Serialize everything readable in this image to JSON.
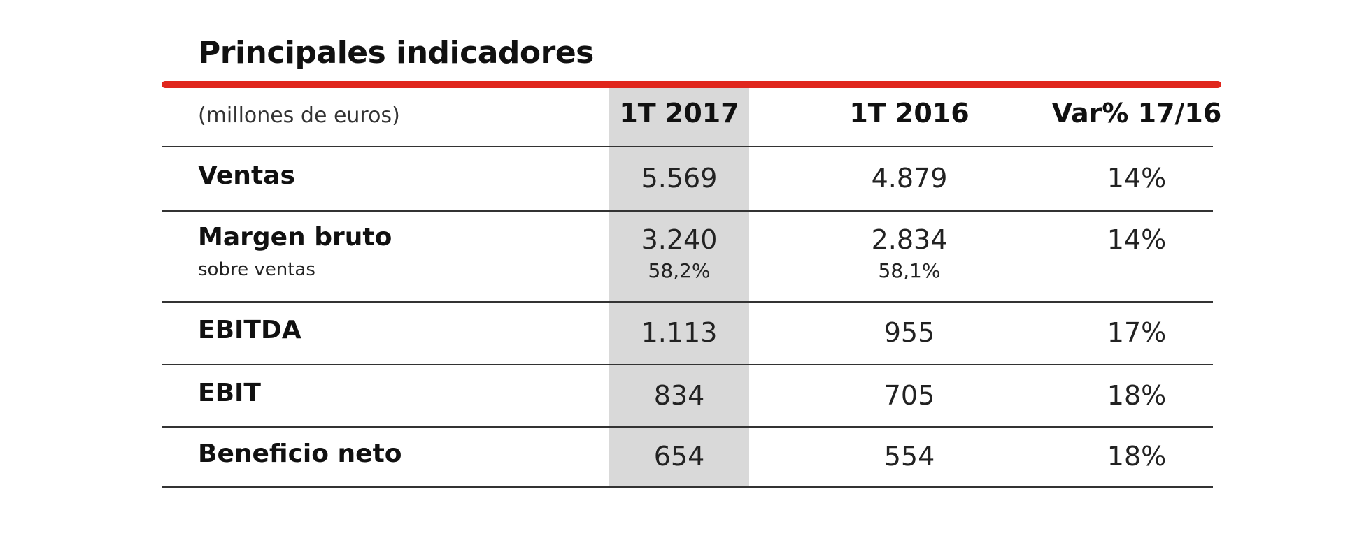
{
  "title": "Principales indicadores",
  "table": {
    "header": [
      "(millones de euros)",
      "1T 2017",
      "1T 2016",
      "Var% 17/16"
    ],
    "rows": [
      {
        "label": "Ventas",
        "cells": [
          "5.569",
          "4.879",
          "14%"
        ]
      },
      {
        "label": "Margen bruto",
        "note": "sobre ventas",
        "cells": [
          "3.240",
          "2.834",
          "14%"
        ],
        "sub": [
          "58,2%",
          "58,1%"
        ]
      },
      {
        "label": "EBITDA",
        "cells": [
          "1.113",
          "955",
          "17%"
        ]
      },
      {
        "label": "EBIT",
        "cells": [
          "834",
          "705",
          "18%"
        ]
      },
      {
        "label": "Beneficio neto",
        "cells": [
          "654",
          "554",
          "18%"
        ]
      }
    ]
  }
}
